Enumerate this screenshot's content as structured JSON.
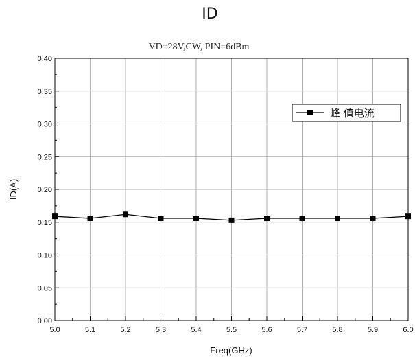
{
  "chart_data": {
    "type": "line",
    "title": "ID",
    "subtitle": "VD=28V,CW, PIN=6dBm",
    "xlabel": "Freq(GHz)",
    "ylabel": "ID(A)",
    "xlim": [
      5.0,
      6.0
    ],
    "ylim": [
      0.0,
      0.4
    ],
    "x_ticks": [
      "5.0",
      "5.1",
      "5.2",
      "5.3",
      "5.4",
      "5.5",
      "5.6",
      "5.7",
      "5.8",
      "5.9",
      "6.0"
    ],
    "y_ticks": [
      "0.00",
      "0.05",
      "0.10",
      "0.15",
      "0.20",
      "0.25",
      "0.30",
      "0.35",
      "0.40"
    ],
    "grid": true,
    "legend_position": "upper-right",
    "series": [
      {
        "name": "峰 值电流",
        "marker": "square",
        "color": "#000000",
        "x": [
          5.0,
          5.1,
          5.2,
          5.3,
          5.4,
          5.5,
          5.6,
          5.7,
          5.8,
          5.9,
          6.0
        ],
        "values": [
          0.159,
          0.156,
          0.162,
          0.156,
          0.156,
          0.153,
          0.156,
          0.156,
          0.156,
          0.156,
          0.159
        ]
      }
    ]
  }
}
